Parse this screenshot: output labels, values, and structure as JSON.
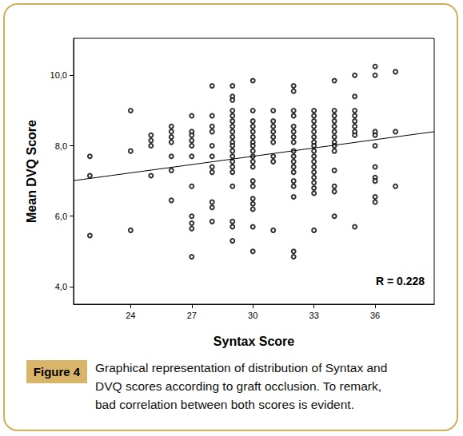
{
  "chart_data": {
    "type": "scatter",
    "x_label": "Syntax Score",
    "y_label": "Mean DVQ Score",
    "annotation": "R = 0.228",
    "xlim": [
      21.2,
      38.9
    ],
    "xticks": [
      24,
      27,
      30,
      33,
      36
    ],
    "ylim": [
      3.5,
      11.05
    ],
    "yticks": [
      {
        "value": 4,
        "label": "4,0"
      },
      {
        "value": 6,
        "label": "6,0"
      },
      {
        "value": 8,
        "label": "8,0"
      },
      {
        "value": 10,
        "label": "10,0"
      }
    ],
    "grid": false,
    "series": [
      {
        "type": "scatter",
        "color": "#000000",
        "marker": "circle-open",
        "x": [
          22,
          22,
          22,
          24,
          24,
          24,
          25,
          25,
          25,
          25,
          26,
          26,
          26,
          26,
          26,
          26,
          26,
          27,
          27,
          27,
          27,
          27,
          27,
          27,
          27,
          27,
          27,
          27,
          28,
          28,
          28,
          28,
          28,
          28,
          28,
          28,
          28,
          28,
          28,
          29,
          29,
          29,
          29,
          29,
          29,
          29,
          29,
          29,
          29,
          29,
          29,
          29,
          29,
          29,
          29,
          29,
          29,
          29,
          29,
          30,
          30,
          30,
          30,
          30,
          30,
          30,
          30,
          30,
          30,
          30,
          30,
          30,
          30,
          30,
          30,
          30,
          30,
          30,
          31,
          31,
          31,
          31,
          31,
          31,
          31,
          31,
          31,
          32,
          32,
          32,
          32,
          32,
          32,
          32,
          32,
          32,
          32,
          32,
          32,
          32,
          32,
          32,
          32,
          32,
          32,
          33,
          33,
          33,
          33,
          33,
          33,
          33,
          33,
          33,
          33,
          33,
          33,
          33,
          33,
          33,
          33,
          33,
          33,
          34,
          34,
          34,
          34,
          34,
          34,
          34,
          34,
          34,
          34,
          34,
          34,
          34,
          34,
          35,
          35,
          35,
          35,
          35,
          35,
          35,
          35,
          35,
          36,
          36,
          36,
          36,
          36,
          36,
          36,
          36,
          36,
          36,
          37,
          37,
          37
        ],
        "values": [
          7.7,
          7.15,
          5.45,
          9.0,
          7.85,
          5.6,
          8.3,
          8.15,
          8.0,
          7.15,
          8.55,
          8.4,
          8.25,
          8.1,
          7.7,
          7.3,
          6.45,
          8.85,
          8.4,
          8.3,
          8.15,
          8.0,
          7.7,
          6.85,
          6.0,
          5.8,
          5.65,
          4.85,
          9.7,
          8.85,
          8.55,
          8.4,
          8.0,
          7.7,
          7.4,
          7.25,
          6.4,
          6.25,
          5.85,
          9.7,
          9.4,
          9.3,
          9.0,
          8.85,
          8.7,
          8.55,
          8.4,
          8.25,
          8.1,
          8.0,
          7.85,
          7.7,
          7.55,
          7.4,
          7.25,
          6.85,
          5.85,
          5.7,
          5.3,
          9.85,
          9.0,
          8.7,
          8.55,
          8.4,
          8.25,
          8.1,
          8.0,
          7.85,
          7.7,
          7.55,
          7.4,
          7.0,
          6.85,
          6.5,
          6.35,
          6.2,
          5.7,
          5.0,
          9.0,
          8.7,
          8.55,
          8.4,
          8.25,
          8.1,
          7.7,
          7.55,
          5.6,
          9.7,
          9.55,
          9.0,
          8.85,
          8.55,
          8.4,
          8.25,
          8.1,
          7.85,
          7.7,
          7.55,
          7.4,
          7.25,
          7.0,
          6.85,
          6.55,
          5.0,
          4.85,
          9.0,
          8.85,
          8.7,
          8.55,
          8.4,
          8.25,
          8.1,
          8.0,
          7.85,
          7.7,
          7.55,
          7.4,
          7.25,
          7.1,
          6.95,
          6.8,
          6.65,
          5.6,
          9.85,
          9.0,
          8.85,
          8.7,
          8.55,
          8.4,
          8.25,
          8.1,
          8.0,
          7.85,
          7.3,
          6.85,
          6.7,
          6.0,
          10.0,
          9.4,
          9.0,
          8.85,
          8.7,
          8.55,
          8.4,
          8.3,
          5.7,
          10.25,
          10.0,
          8.4,
          8.3,
          8.0,
          7.4,
          7.1,
          7.0,
          6.55,
          6.4,
          10.1,
          8.4,
          6.85
        ]
      },
      {
        "type": "line",
        "color": "#000000",
        "line_style": "solid",
        "x": [
          21.2,
          38.9
        ],
        "values": [
          7.01,
          8.4
        ]
      }
    ]
  },
  "caption": {
    "label": "Figure 4",
    "lines": [
      "Graphical representation of distribution of Syntax and",
      "DVQ scores according to graft occlusion. To remark,",
      "bad correlation between both scores is evident."
    ]
  }
}
